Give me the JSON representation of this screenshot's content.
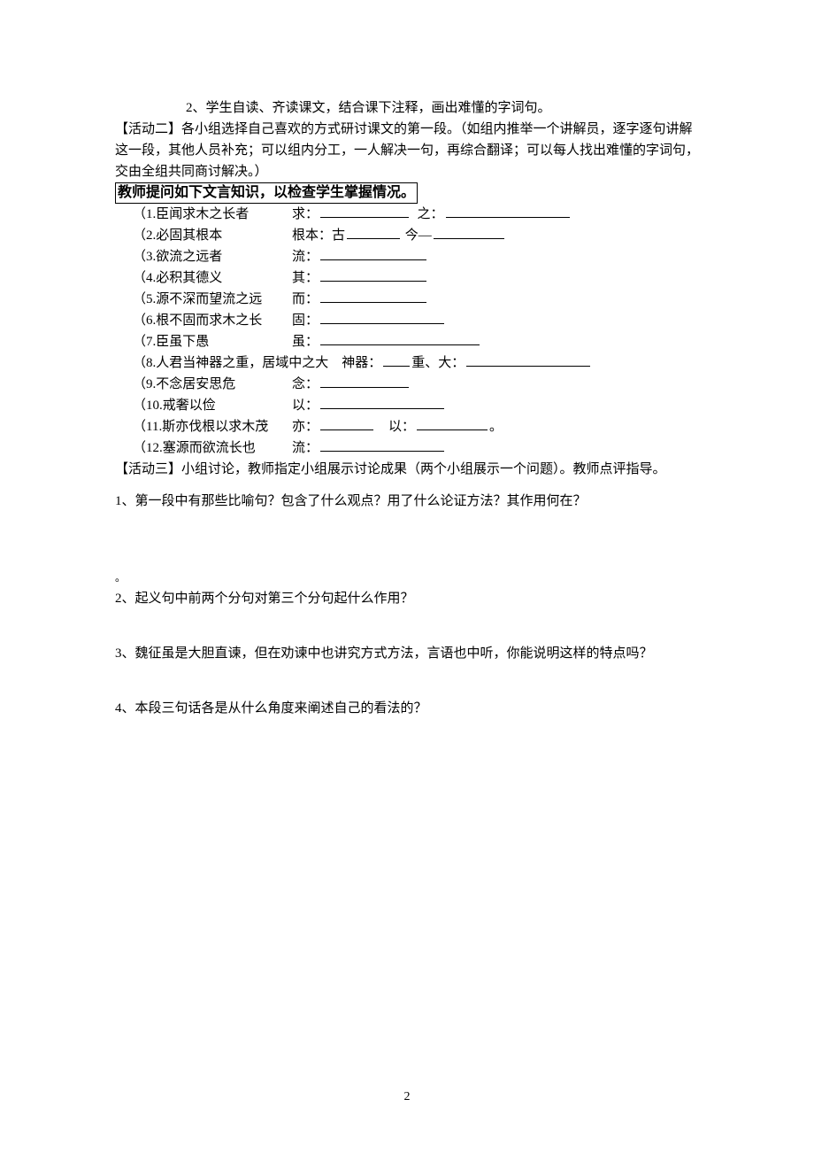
{
  "intro": {
    "line1": "2、学生自读、齐读课文，结合课下注释，画出难懂的字词句。",
    "activity2": "【活动二】各小组选择自己喜欢的方式研讨课文的第一段。（如组内推举一个讲解员，逐字逐句讲解这一段，其他人员补充；可以组内分工，一人解决一句，再综合翻译；可以每人找出难懂的字词句，交由全组共同商讨解决。）",
    "boxed": "教师提问如下文言知识，以检查学生掌握情况。"
  },
  "items": [
    {
      "left": "（1.臣闻求木之长者",
      "rightPrefix": "求：",
      "blanks": [
        "w100"
      ],
      "mid": "  之：",
      "blanks2": [
        "w140"
      ]
    },
    {
      "left": "（2.必固其根本",
      "rightPrefix": "根本：古",
      "blanks": [
        "w60"
      ],
      "mid": " 今—",
      "blanks2": [
        "w80"
      ]
    },
    {
      "left": "（3.欲流之远者",
      "rightPrefix": "流：",
      "blanks": [
        "w120"
      ]
    },
    {
      "left": "（4.必积其德义",
      "rightPrefix": "其：",
      "blanks": [
        "w120"
      ]
    },
    {
      "left": "（5.源不深而望流之远",
      "rightPrefix": "而：",
      "blanks": [
        "w120"
      ]
    },
    {
      "left": "（6.根不固而求木之长",
      "rightPrefix": "固：",
      "blanks": [
        "w140"
      ]
    },
    {
      "left": "（7.臣虽下愚",
      "rightPrefix": "虽：",
      "blanks": [
        "w180"
      ]
    },
    {
      "left": "（8.人君当神器之重，居域中之大    神器：",
      "rightPrefix": "",
      "blanks": [
        "w40"
      ],
      "mid": "重、大：",
      "blanks2": [
        "w140"
      ],
      "fullRow": true
    },
    {
      "left": "（9.不念居安思危",
      "rightPrefix": "念：",
      "blanks": [
        "w100"
      ]
    },
    {
      "left": "（10.戒奢以俭",
      "rightPrefix": "以：",
      "blanks": [
        "w140"
      ]
    },
    {
      "left": "（11.斯亦伐根以求木茂",
      "rightPrefix": "亦：",
      "blanks": [
        "w60"
      ],
      "mid": "    以：",
      "blanks2": [
        "w80"
      ],
      "tail": "。"
    },
    {
      "left": "（12.塞源而欲流长也",
      "rightPrefix": "流：",
      "blanks": [
        "w140"
      ]
    }
  ],
  "activity3": "【活动三】小组讨论，教师指定小组展示讨论成果（两个小组展示一个问题）。教师点评指导。",
  "q1": "1、第一段中有那些比喻句？包含了什么观点？用了什么论证方法？其作用何在？",
  "circle": "。",
  "q2": "2、起义句中前两个分句对第三个分句起什么作用？",
  "q3": "3、魏征虽是大胆直谏，但在劝谏中也讲究方式方法，言语也中听，你能说明这样的特点吗？",
  "q4": "4、本段三句话各是从什么角度来阐述自己的看法的？",
  "pageNum": "2"
}
